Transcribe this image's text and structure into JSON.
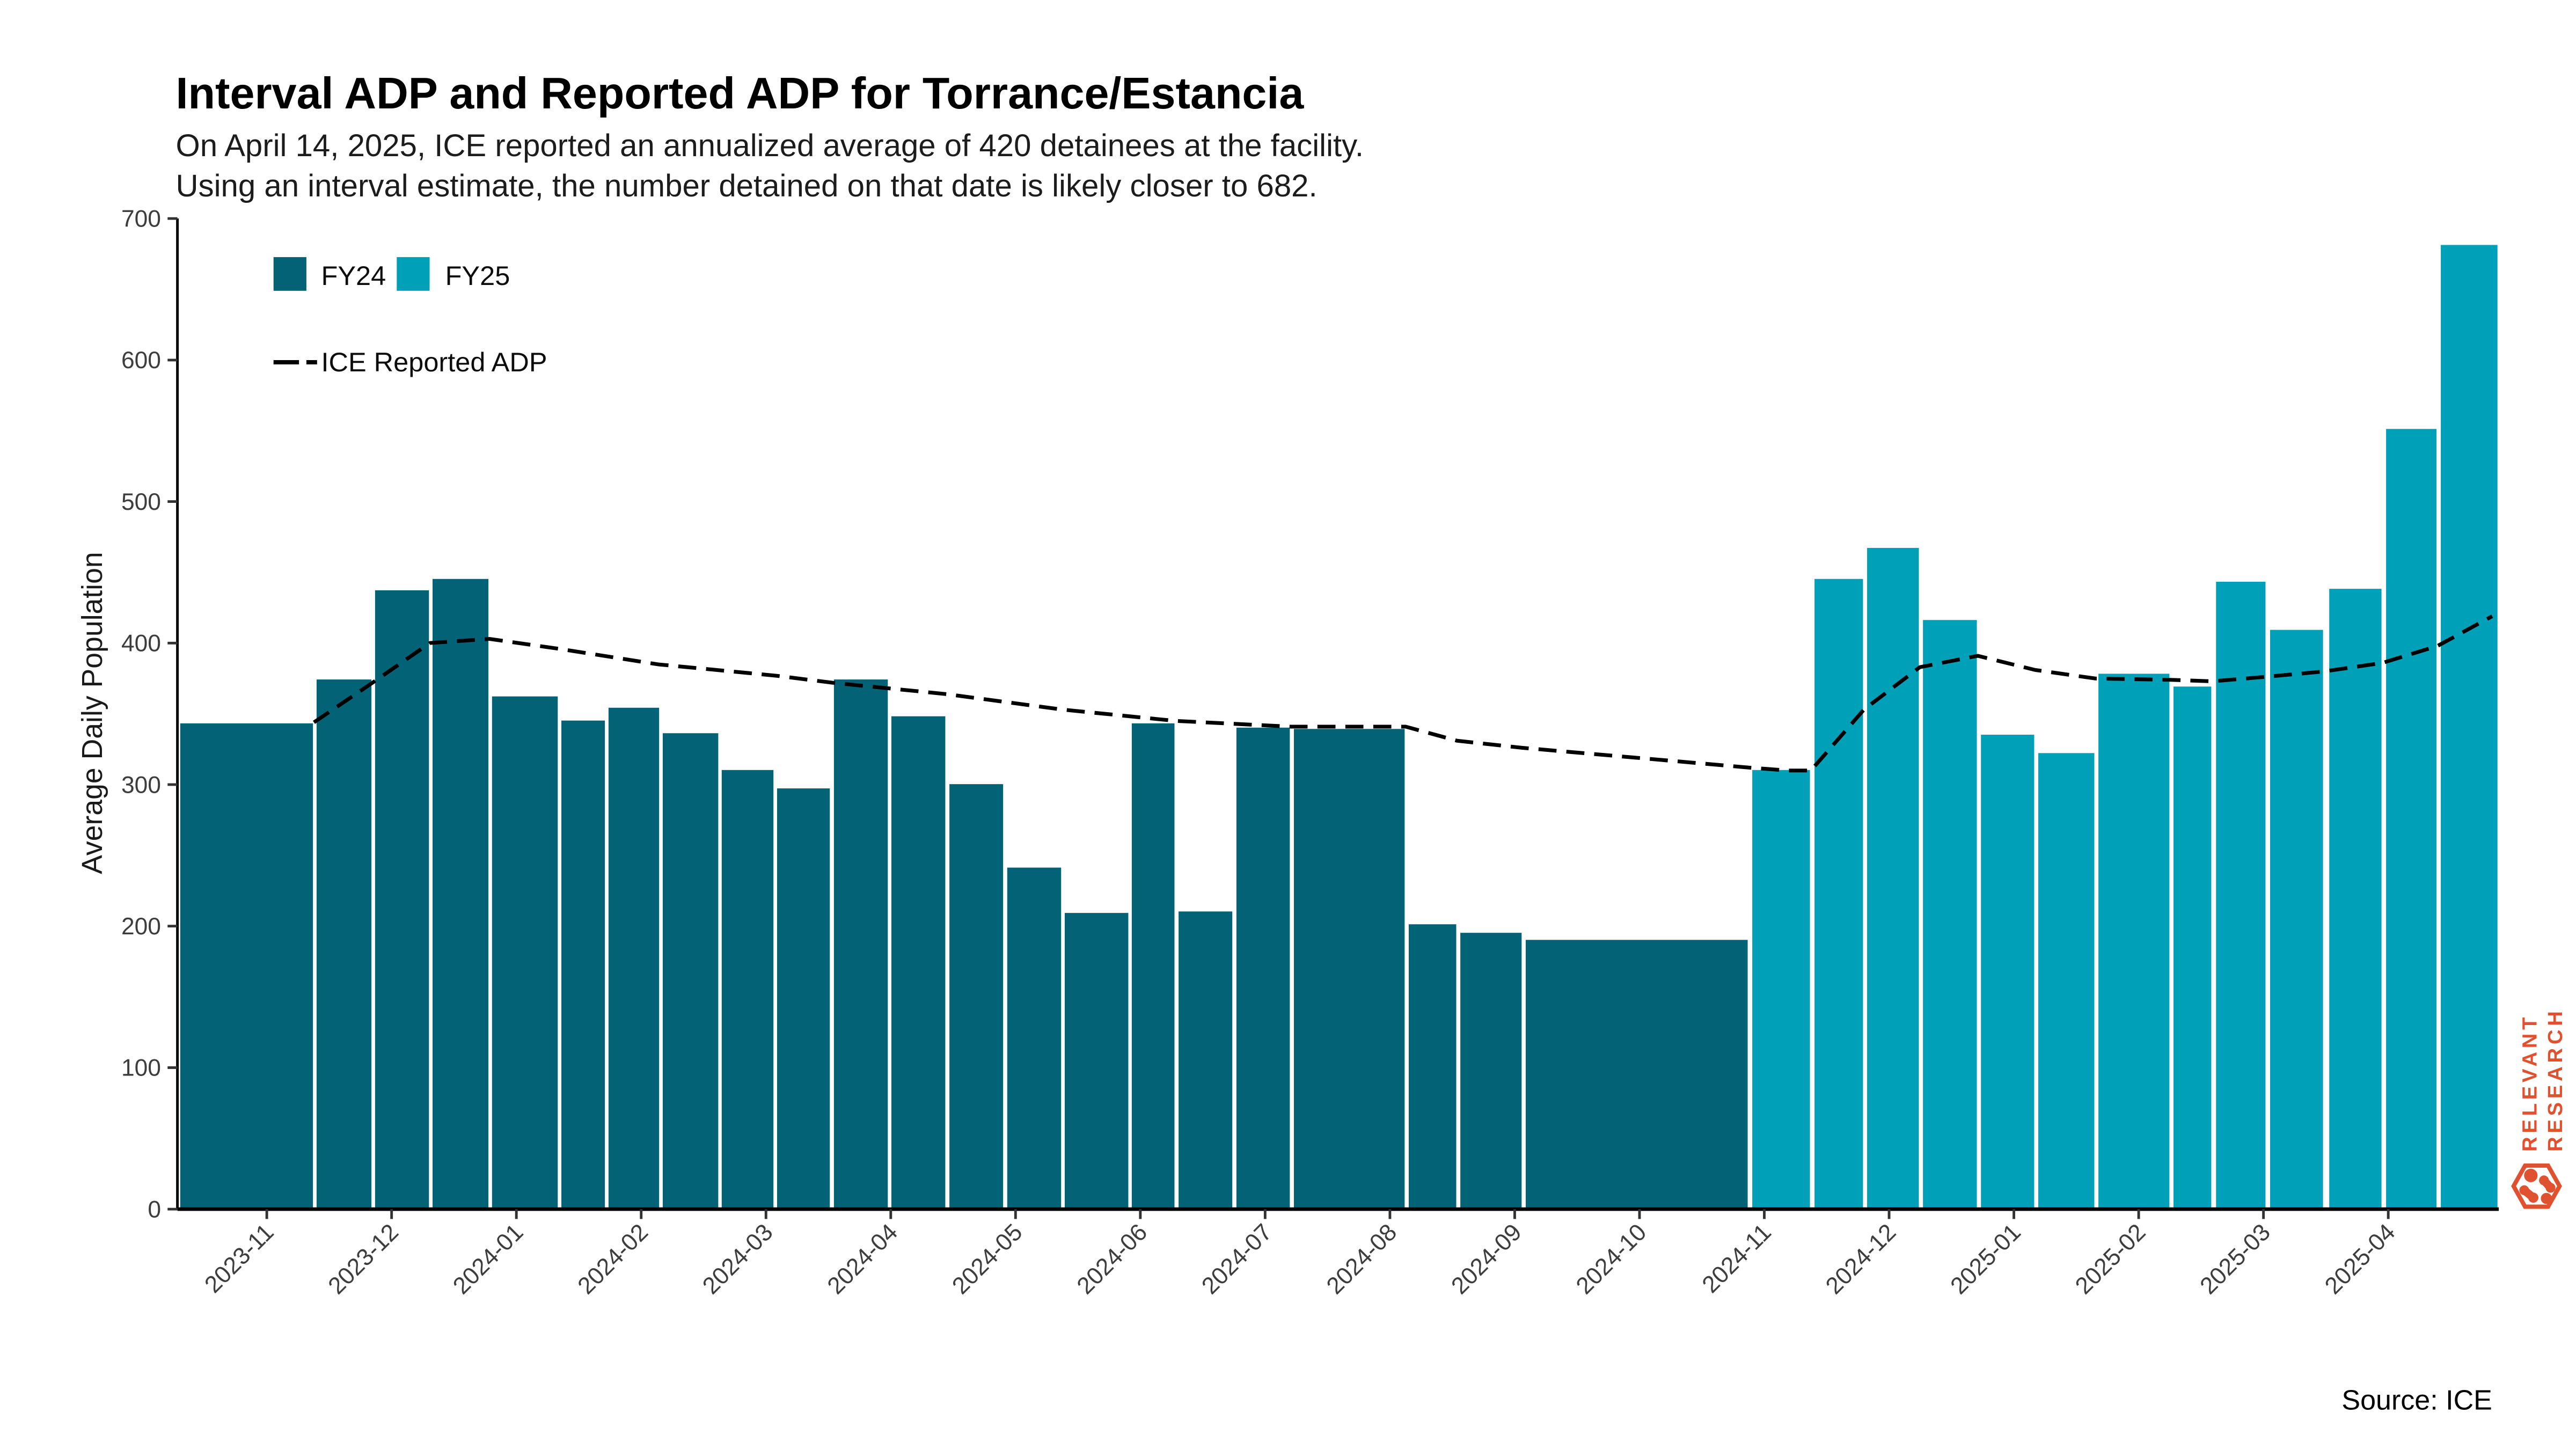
{
  "title": "Interval ADP and Reported ADP for Torrance/Estancia",
  "subtitle": {
    "line1": "On April 14, 2025, ICE reported an annualized average of 420 detainees at the facility.",
    "line2": "Using an interval estimate, the number detained on that date is likely closer to 682."
  },
  "y_axis": {
    "label": "Average Daily Population",
    "ticks": [
      0,
      100,
      200,
      300,
      400,
      500,
      600,
      700
    ]
  },
  "x_axis": {
    "labels": [
      "2023-11",
      "2023-12",
      "2024-01",
      "2024-02",
      "2024-03",
      "2024-04",
      "2024-05",
      "2024-06",
      "2024-07",
      "2024-08",
      "2024-09",
      "2024-10",
      "2024-11",
      "2024-12",
      "2025-01",
      "2025-02",
      "2025-03",
      "2025-04"
    ]
  },
  "legend": {
    "fy24_label": "FY24",
    "fy25_label": "FY25",
    "line_label": "ICE Reported ADP"
  },
  "source": "Source: ICE",
  "branding": {
    "line1": "RELEVANT",
    "line2": "RESEARCH",
    "color": "#E0512F"
  },
  "colors": {
    "fy24": "#026376",
    "fy25": "#00A0B8",
    "line": "#000000",
    "axis": "#000000",
    "tick_label": "#3d3d3d"
  },
  "chart_data": {
    "type": "bar+line",
    "title": "Interval ADP and Reported ADP for Torrance/Estancia",
    "ylabel": "Average Daily Population",
    "ylim": [
      0,
      700
    ],
    "coordinate_space": "plot px within 1568x882 canvas, x-axis months 2023-11..2025-04",
    "bars": [
      {
        "x1": 109.1,
        "x2": 191.1,
        "value": 344,
        "fy": "FY24"
      },
      {
        "x1": 192.1,
        "x2": 226.7,
        "value": 375,
        "fy": "FY24"
      },
      {
        "x1": 227.7,
        "x2": 261.7,
        "value": 438,
        "fy": "FY24"
      },
      {
        "x1": 262.7,
        "x2": 297.9,
        "value": 446,
        "fy": "FY24"
      },
      {
        "x1": 298.9,
        "x2": 340.1,
        "value": 363,
        "fy": "FY24"
      },
      {
        "x1": 341.1,
        "x2": 368.8,
        "value": 346,
        "fy": "FY24"
      },
      {
        "x1": 369.8,
        "x2": 401.8,
        "value": 355,
        "fy": "FY24"
      },
      {
        "x1": 402.8,
        "x2": 437.8,
        "value": 337,
        "fy": "FY24"
      },
      {
        "x1": 438.7,
        "x2": 471.4,
        "value": 311,
        "fy": "FY24"
      },
      {
        "x1": 472.4,
        "x2": 505.7,
        "value": 298,
        "fy": "FY24"
      },
      {
        "x1": 507.0,
        "x2": 541.0,
        "value": 375,
        "fy": "FY24"
      },
      {
        "x1": 542.0,
        "x2": 576.0,
        "value": 349,
        "fy": "FY24"
      },
      {
        "x1": 577.3,
        "x2": 611.2,
        "value": 301,
        "fy": "FY24"
      },
      {
        "x1": 612.5,
        "x2": 646.5,
        "value": 242,
        "fy": "FY24"
      },
      {
        "x1": 647.5,
        "x2": 687.4,
        "value": 210,
        "fy": "FY24"
      },
      {
        "x1": 688.3,
        "x2": 715.5,
        "value": 344,
        "fy": "FY24"
      },
      {
        "x1": 716.8,
        "x2": 750.7,
        "value": 211,
        "fy": "FY24"
      },
      {
        "x1": 752.0,
        "x2": 785.7,
        "value": 341,
        "fy": "FY24"
      },
      {
        "x1": 787.0,
        "x2": 855.6,
        "value": 340,
        "fy": "FY24"
      },
      {
        "x1": 856.9,
        "x2": 887.0,
        "value": 202,
        "fy": "FY24"
      },
      {
        "x1": 888.3,
        "x2": 926.8,
        "value": 196,
        "fy": "FY24"
      },
      {
        "x1": 928.1,
        "x2": 1064.4,
        "value": 191,
        "fy": "FY24"
      },
      {
        "x1": 1066.0,
        "x2": 1102.3,
        "value": 311,
        "fy": "FY25"
      },
      {
        "x1": 1103.9,
        "x2": 1134.6,
        "value": 446,
        "fy": "FY25"
      },
      {
        "x1": 1135.9,
        "x2": 1168.6,
        "value": 468,
        "fy": "FY25"
      },
      {
        "x1": 1169.9,
        "x2": 1203.9,
        "value": 417,
        "fy": "FY25"
      },
      {
        "x1": 1205.2,
        "x2": 1238.8,
        "value": 336,
        "fy": "FY25"
      },
      {
        "x1": 1240.1,
        "x2": 1275.4,
        "value": 323,
        "fy": "FY25"
      },
      {
        "x1": 1276.7,
        "x2": 1321.1,
        "value": 379,
        "fy": "FY25"
      },
      {
        "x1": 1322.4,
        "x2": 1346.6,
        "value": 370,
        "fy": "FY25"
      },
      {
        "x1": 1348.3,
        "x2": 1379.6,
        "value": 444,
        "fy": "FY25"
      },
      {
        "x1": 1381.2,
        "x2": 1414.6,
        "value": 410,
        "fy": "FY25"
      },
      {
        "x1": 1417.2,
        "x2": 1450.2,
        "value": 439,
        "fy": "FY25"
      },
      {
        "x1": 1451.8,
        "x2": 1483.7,
        "value": 552,
        "fy": "FY25"
      },
      {
        "x1": 1485.1,
        "x2": 1520.8,
        "value": 682,
        "fy": "FY25"
      }
    ],
    "ice_reported_adp_line": [
      {
        "x": 191.1,
        "value": 344
      },
      {
        "x": 226.7,
        "value": 372
      },
      {
        "x": 261.7,
        "value": 400
      },
      {
        "x": 297.9,
        "value": 403
      },
      {
        "x": 340.1,
        "value": 396
      },
      {
        "x": 400.6,
        "value": 385
      },
      {
        "x": 472.4,
        "value": 377
      },
      {
        "x": 507.0,
        "value": 372
      },
      {
        "x": 576.0,
        "value": 364
      },
      {
        "x": 646.5,
        "value": 353
      },
      {
        "x": 715.5,
        "value": 345
      },
      {
        "x": 785.7,
        "value": 341
      },
      {
        "x": 855.6,
        "value": 341
      },
      {
        "x": 887.0,
        "value": 331
      },
      {
        "x": 926.8,
        "value": 326
      },
      {
        "x": 1064.4,
        "value": 312
      },
      {
        "x": 1088.2,
        "value": 310
      },
      {
        "x": 1102.3,
        "value": 310
      },
      {
        "x": 1134.6,
        "value": 353
      },
      {
        "x": 1168.6,
        "value": 383
      },
      {
        "x": 1203.9,
        "value": 391
      },
      {
        "x": 1238.8,
        "value": 381
      },
      {
        "x": 1275.4,
        "value": 375
      },
      {
        "x": 1321.1,
        "value": 374
      },
      {
        "x": 1346.6,
        "value": 373
      },
      {
        "x": 1377.8,
        "value": 376
      },
      {
        "x": 1414.6,
        "value": 380
      },
      {
        "x": 1450.2,
        "value": 386
      },
      {
        "x": 1483.7,
        "value": 398
      },
      {
        "x": 1517.0,
        "value": 419
      }
    ]
  }
}
